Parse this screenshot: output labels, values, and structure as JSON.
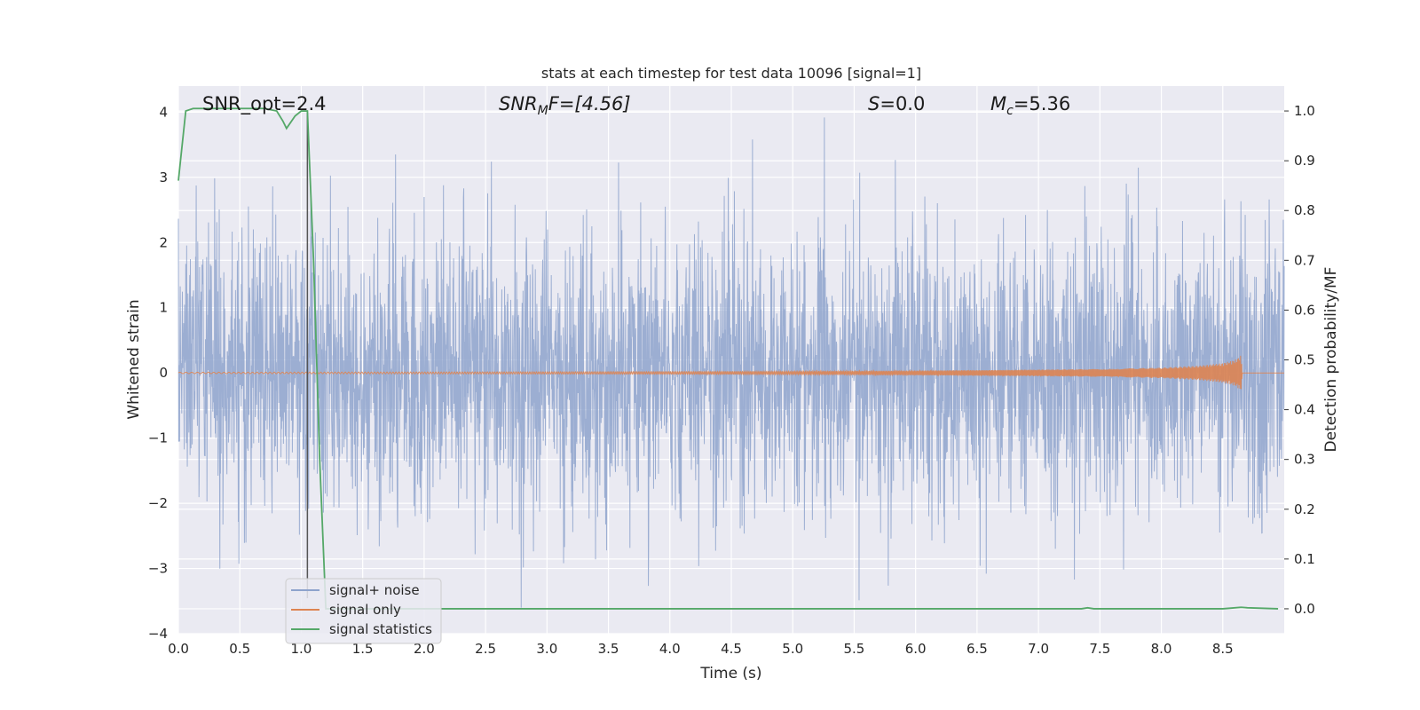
{
  "chart_data": {
    "type": "line",
    "title": "stats at each timestep for test data 10096 [signal=1]",
    "xlabel": "Time (s)",
    "ylabel_left": "Whitened strain",
    "ylabel_right": "Detection probability/MF",
    "xlim": [
      0.0,
      9.0
    ],
    "ylim_left": [
      -4.0,
      4.4
    ],
    "ylim_right": [
      -0.05,
      1.05
    ],
    "xticks": [
      "0.0",
      "0.5",
      "1.0",
      "1.5",
      "2.0",
      "2.5",
      "3.0",
      "3.5",
      "4.0",
      "4.5",
      "5.0",
      "5.5",
      "6.0",
      "6.5",
      "7.0",
      "7.5",
      "8.0",
      "8.5"
    ],
    "yticks_left": [
      "−4",
      "−3",
      "−2",
      "−1",
      "0",
      "1",
      "2",
      "3",
      "4"
    ],
    "yticks_right": [
      "0.0",
      "0.1",
      "0.2",
      "0.3",
      "0.4",
      "0.5",
      "0.6",
      "0.7",
      "0.8",
      "0.9",
      "1.0"
    ],
    "grid": true,
    "legend_position": "lower-left",
    "colors": {
      "noise": "#8ea3cc",
      "signal": "#dd8452",
      "stats": "#55a868",
      "background": "#eaeaf2",
      "marker": "#555555"
    },
    "annotations": {
      "snr_opt": "SNR_opt=2.4",
      "snr_mf_base": "SNR",
      "snr_mf_sub": "M",
      "snr_mf_rest": "F=[4.56]",
      "s_var": "S",
      "s_val": "=0.0",
      "mc_base": "M",
      "mc_sub": "c",
      "mc_val": "=5.36"
    },
    "marker_line_x": 1.05,
    "series": [
      {
        "name": "signal+ noise",
        "axis": "left",
        "description_range": [
          -3.6,
          4.0
        ]
      },
      {
        "name": "signal only",
        "axis": "left",
        "envelope": {
          "x": [
            0.0,
            2.0,
            4.0,
            5.0,
            6.0,
            7.0,
            7.5,
            8.0,
            8.3,
            8.5,
            8.6,
            8.65,
            8.66,
            9.0
          ],
          "amp": [
            0.01,
            0.015,
            0.02,
            0.025,
            0.035,
            0.05,
            0.06,
            0.08,
            0.11,
            0.15,
            0.2,
            0.27,
            0.0,
            0.0
          ]
        }
      },
      {
        "name": "signal statistics",
        "axis": "right",
        "x": [
          0.0,
          0.06,
          0.12,
          0.2,
          0.3,
          0.4,
          0.5,
          0.6,
          0.7,
          0.8,
          0.85,
          0.88,
          0.95,
          1.0,
          1.05,
          1.1,
          1.15,
          1.2,
          1.3,
          2.0,
          3.0,
          4.0,
          5.0,
          6.0,
          7.0,
          7.35,
          7.4,
          7.45,
          8.0,
          8.5,
          8.65,
          8.7,
          8.95
        ],
        "values": [
          0.86,
          1.0,
          1.005,
          1.005,
          1.005,
          1.005,
          1.005,
          1.005,
          1.005,
          1.0,
          0.98,
          0.965,
          0.99,
          1.0,
          1.0,
          0.7,
          0.3,
          0.0,
          0.0,
          0.0,
          0.0,
          0.0,
          0.0,
          0.0,
          0.0,
          0.0,
          0.002,
          0.0,
          0.0,
          0.0,
          0.003,
          0.002,
          0.0
        ]
      }
    ]
  }
}
